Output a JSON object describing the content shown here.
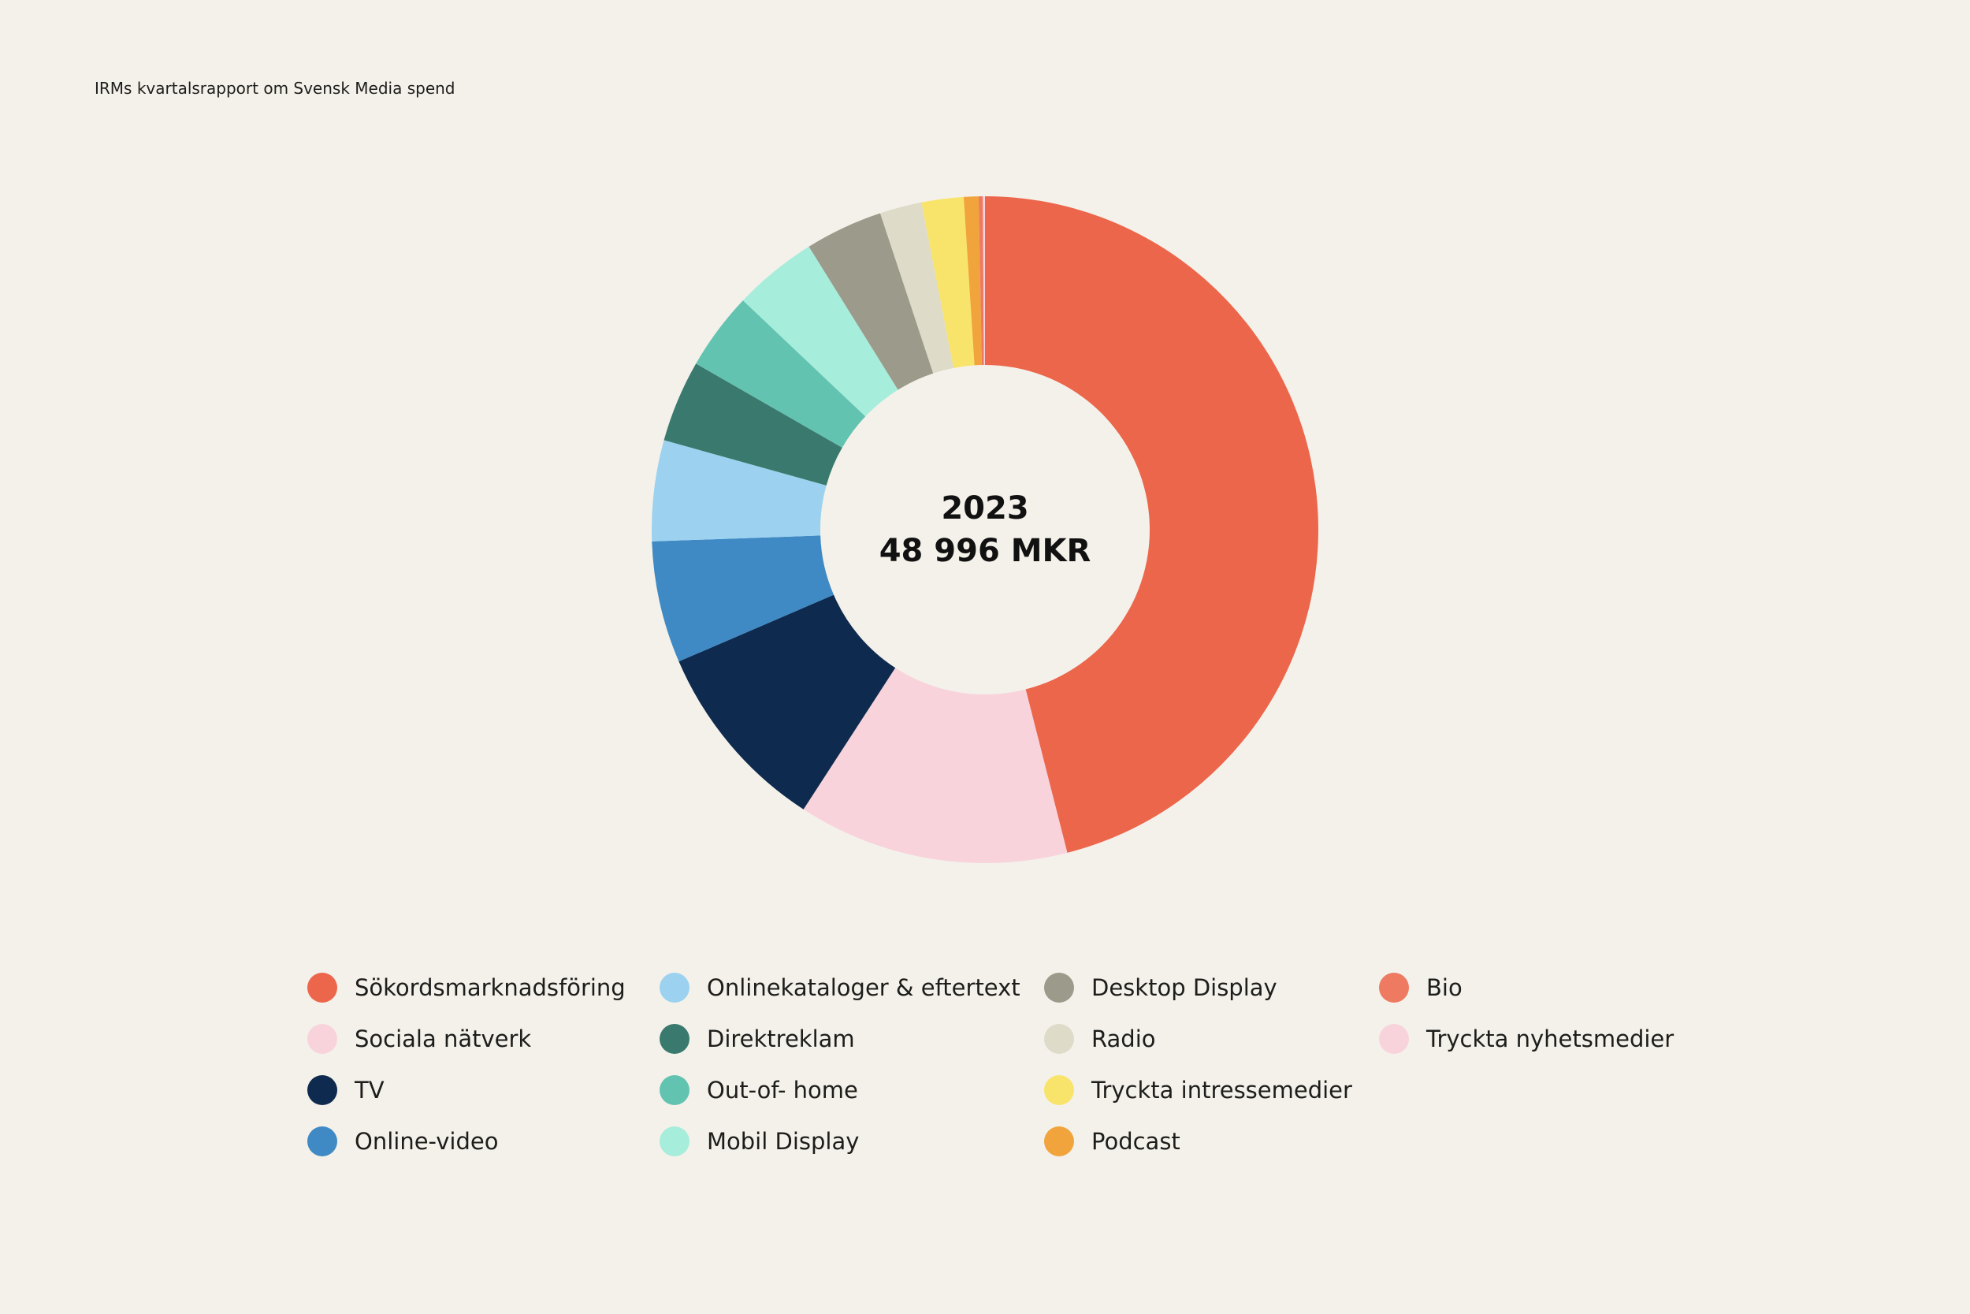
{
  "header": {
    "source_text": "IRMs kvartalsrapport om Svensk Media spend"
  },
  "chart_data": {
    "type": "pie",
    "style": "donut",
    "center_label": {
      "year": "2023",
      "total": "48 996 MKR"
    },
    "legend_placement": "bottom",
    "slices": [
      {
        "name": "Sökordsmarknadsföring",
        "value": 45.2,
        "color": "#ec664b"
      },
      {
        "name": "Sociala nätverk",
        "value": 12.9,
        "color": "#f8d3dc"
      },
      {
        "name": "TV",
        "value": 9.2,
        "color": "#0e2a4e"
      },
      {
        "name": "Online-video",
        "value": 5.8,
        "color": "#3f8ac5"
      },
      {
        "name": "Onlinekataloger & eftertext",
        "value": 4.8,
        "color": "#9cd2f0"
      },
      {
        "name": "Direktreklam",
        "value": 3.9,
        "color": "#3a7a6e"
      },
      {
        "name": "Out-of- home",
        "value": 3.7,
        "color": "#63c3b1"
      },
      {
        "name": "Mobil Display",
        "value": 4.0,
        "color": "#a6eddb"
      },
      {
        "name": "Desktop Display",
        "value": 3.7,
        "color": "#9b9a8b"
      },
      {
        "name": "Radio",
        "value": 2.0,
        "color": "#dedbc9"
      },
      {
        "name": "Tryckta intressemedier",
        "value": 2.0,
        "color": "#f9e46b"
      },
      {
        "name": "Podcast",
        "value": 0.7,
        "color": "#f1a43c"
      },
      {
        "name": "Bio",
        "value": 0.2,
        "color": "#ee7a62"
      },
      {
        "name": "Tryckta nyhetsmedier",
        "value": 0.1,
        "color": "#f8d3dc"
      }
    ]
  }
}
